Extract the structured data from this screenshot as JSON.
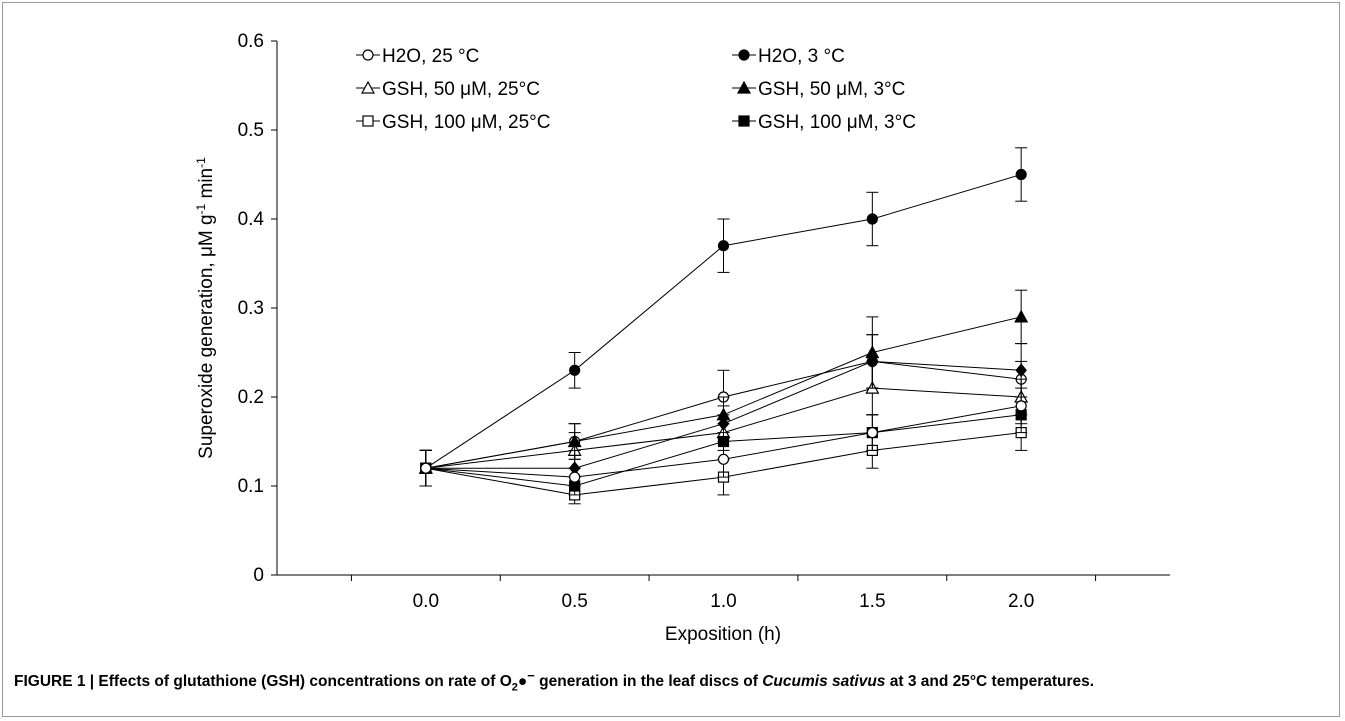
{
  "chart_data": {
    "type": "line",
    "x": [
      0.0,
      0.5,
      1.0,
      1.5,
      2.0
    ],
    "x_tick_labels": [
      "0.0",
      "0.5",
      "1.0",
      "1.5",
      "2.0"
    ],
    "xlabel": "Exposition (h)",
    "ylabel_main": "Superoxide generation,  μM g",
    "ylabel_sup1": "-1",
    "ylabel_mid": " min",
    "ylabel_sup2": "-1",
    "ylim": [
      0,
      0.6
    ],
    "y_ticks": [
      0,
      0.1,
      0.2,
      0.3,
      0.4,
      0.5,
      0.6
    ],
    "y_tick_labels": [
      "0",
      "0.1",
      "0.2",
      "0.3",
      "0.4",
      "0.5",
      "0.6"
    ],
    "grid": false,
    "legend_position": "top",
    "series": [
      {
        "name": "H2O, 25 °C",
        "marker": "circle",
        "filled": false,
        "values": [
          0.12,
          0.15,
          0.2,
          0.24,
          0.22
        ],
        "errors": [
          0.02,
          0.02,
          0.03,
          0.03,
          0.02
        ]
      },
      {
        "name": "H2O, 3 °C",
        "marker": "circle",
        "filled": true,
        "values": [
          0.12,
          0.23,
          0.37,
          0.4,
          0.45
        ],
        "errors": [
          0.02,
          0.02,
          0.03,
          0.03,
          0.03
        ]
      },
      {
        "name": "GSH, 50 μM, 25°C",
        "marker": "triangle",
        "filled": false,
        "values": [
          0.12,
          0.14,
          0.16,
          0.21,
          0.2
        ],
        "errors": [
          0.02,
          0.02,
          0.02,
          0.03,
          0.02
        ]
      },
      {
        "name": "GSH, 50 μM, 3°C",
        "marker": "triangle",
        "filled": true,
        "values": [
          0.12,
          0.15,
          0.18,
          0.25,
          0.29
        ],
        "errors": [
          0.02,
          0.02,
          0.02,
          0.04,
          0.03
        ]
      },
      {
        "name": "GSH, 100 μM, 25°C",
        "marker": "square",
        "filled": false,
        "values": [
          0.12,
          0.09,
          0.11,
          0.14,
          0.16
        ],
        "errors": [
          0.02,
          0.01,
          0.02,
          0.02,
          0.02
        ]
      },
      {
        "name": "GSH, 100 μM, 3°C",
        "marker": "square",
        "filled": true,
        "values": [
          0.12,
          0.1,
          0.15,
          0.16,
          0.18
        ],
        "errors": [
          0.02,
          0.01,
          0.02,
          0.02,
          0.02
        ]
      },
      {
        "marker": "diamond",
        "filled": true,
        "values": [
          0.12,
          0.12,
          0.17,
          0.24,
          0.23
        ],
        "errors": [
          0.02,
          0.02,
          0.02,
          0.03,
          0.03
        ]
      },
      {
        "marker": "circle",
        "filled": false,
        "values": [
          0.12,
          0.11,
          0.13,
          0.16,
          0.19
        ],
        "errors": [
          0.02,
          0.01,
          0.02,
          0.02,
          0.02
        ]
      }
    ]
  },
  "caption": {
    "part1": "FIGURE 1 | Effects of glutathione (GSH) concentrations on rate of O",
    "sub": "2",
    "part2": "●",
    "sup": "−",
    "part3": " generation in the leaf discs of ",
    "species": "Cucumis sativus",
    "part4": " at 3 and 25°C temperatures."
  }
}
